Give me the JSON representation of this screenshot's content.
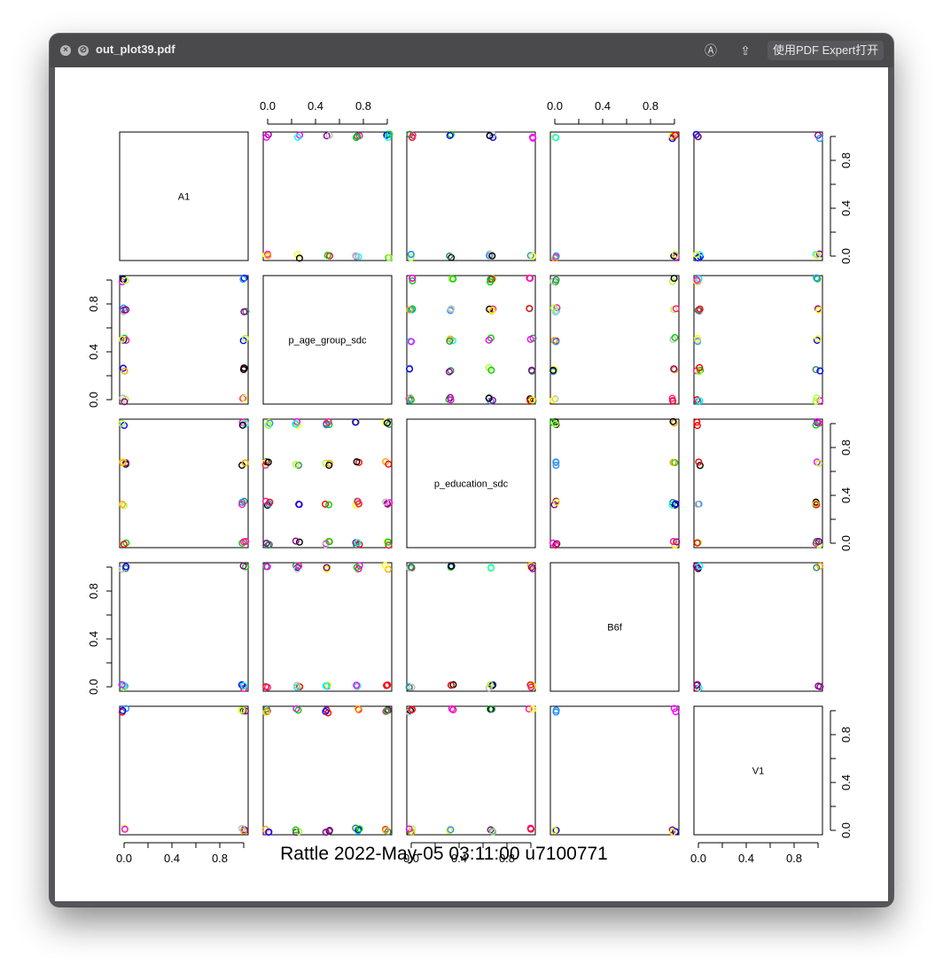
{
  "window": {
    "title": "out_plot39.pdf",
    "open_with_label": "使用PDF Expert打开",
    "close_icon": "close-icon",
    "minimize_icon": "block-icon",
    "markup_icon": "markup-icon",
    "share_icon": "share-icon"
  },
  "chart_data": {
    "type": "scatter",
    "subtype": "pairs-matrix",
    "variables": [
      "A1",
      "p_age_group_sdc",
      "p_education_sdc",
      "B6f",
      "V1"
    ],
    "tick_labels": [
      "0.0",
      "0.4",
      "0.8"
    ],
    "axis_range": [
      0,
      1
    ],
    "marker": "open-circle",
    "point_colors": [
      "#000000",
      "#bebebe",
      "#ff0000",
      "#00cd00",
      "#0000ff",
      "#00ffff",
      "#ff00ff",
      "#ffff00",
      "#1e90ff",
      "#ff1493",
      "#8b008b",
      "#2e8b57",
      "#ffa500",
      "#adff2f"
    ],
    "values_grid": {
      "A1": [
        0,
        1
      ],
      "p_age_group_sdc": [
        0,
        0.25,
        0.5,
        0.75,
        1
      ],
      "p_education_sdc": [
        0,
        0.333,
        0.667,
        1
      ],
      "B6f": [
        0,
        1
      ],
      "V1": [
        0,
        1
      ]
    },
    "footer": "Rattle 2022-May-05 03:11:00 u7100771"
  }
}
